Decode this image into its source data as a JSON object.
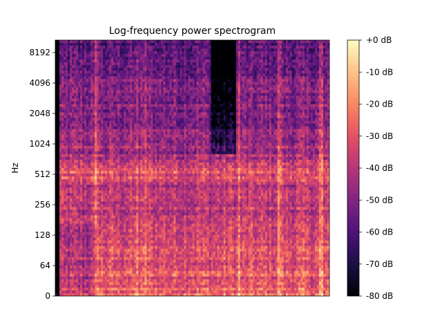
{
  "chart_data": {
    "type": "heatmap",
    "title": "Log-frequency power spectrogram",
    "xlabel": "",
    "ylabel": "Hz",
    "y_scale": "log2",
    "y_ticks": [
      0,
      64,
      128,
      256,
      512,
      1024,
      2048,
      4096,
      8192
    ],
    "y_tick_labels": [
      "0",
      "64",
      "128",
      "256",
      "512",
      "1024",
      "2048",
      "4096",
      "8192"
    ],
    "colorbar": {
      "colormap": "magma",
      "range": [
        -80,
        0
      ],
      "ticks": [
        0,
        -10,
        -20,
        -30,
        -40,
        -50,
        -60,
        -70,
        -80
      ],
      "tick_labels": [
        "+0 dB",
        "-10 dB",
        "-20 dB",
        "-30 dB",
        "-40 dB",
        "-50 dB",
        "-60 dB",
        "-70 dB",
        "-80 dB"
      ]
    },
    "colors": {
      "magma": [
        "#000004",
        "#1c1044",
        "#4f127b",
        "#812581",
        "#b5367a",
        "#e55064",
        "#fb8761",
        "#fec287",
        "#fcfdbf"
      ]
    }
  }
}
